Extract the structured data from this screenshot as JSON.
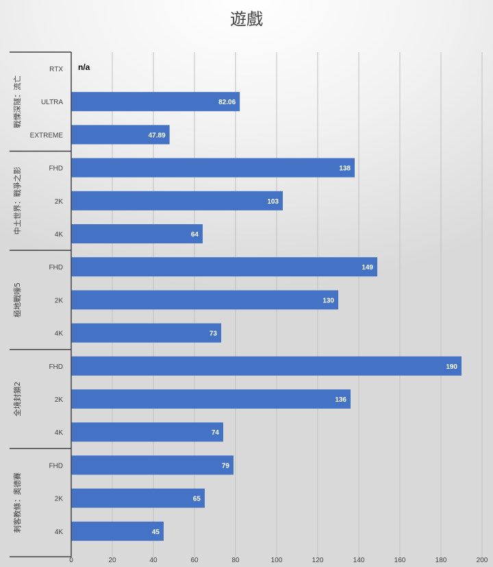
{
  "chart_data": {
    "type": "bar",
    "orientation": "horizontal",
    "title": "遊戲",
    "xlim": [
      0,
      200
    ],
    "x_ticks": [
      0,
      20,
      40,
      60,
      80,
      100,
      120,
      140,
      160,
      180,
      200
    ],
    "grid": "vertical",
    "bar_color": "#4472C4",
    "groups": [
      {
        "name": "戰慄深隧：流亡",
        "categories": [
          "RTX",
          "ULTRA",
          "EXTREME"
        ],
        "values": [
          null,
          82.06,
          47.89
        ],
        "labels": [
          "n/a",
          "82.06",
          "47.89"
        ]
      },
      {
        "name": "中土世界：戰爭之影",
        "categories": [
          "FHD",
          "2K",
          "4K"
        ],
        "values": [
          138,
          103,
          64
        ],
        "labels": [
          "138",
          "103",
          "64"
        ]
      },
      {
        "name": "極地戰嚎5",
        "categories": [
          "FHD",
          "2K",
          "4K"
        ],
        "values": [
          149,
          130,
          73
        ],
        "labels": [
          "149",
          "130",
          "73"
        ]
      },
      {
        "name": "全境封鎖2",
        "categories": [
          "FHD",
          "2K",
          "4K"
        ],
        "values": [
          190,
          136,
          74
        ],
        "labels": [
          "190",
          "136",
          "74"
        ]
      },
      {
        "name": "刺客教條：奧德賽",
        "categories": [
          "FHD",
          "2K",
          "4K"
        ],
        "values": [
          79,
          65,
          45
        ],
        "labels": [
          "79",
          "65",
          "45"
        ]
      }
    ]
  }
}
